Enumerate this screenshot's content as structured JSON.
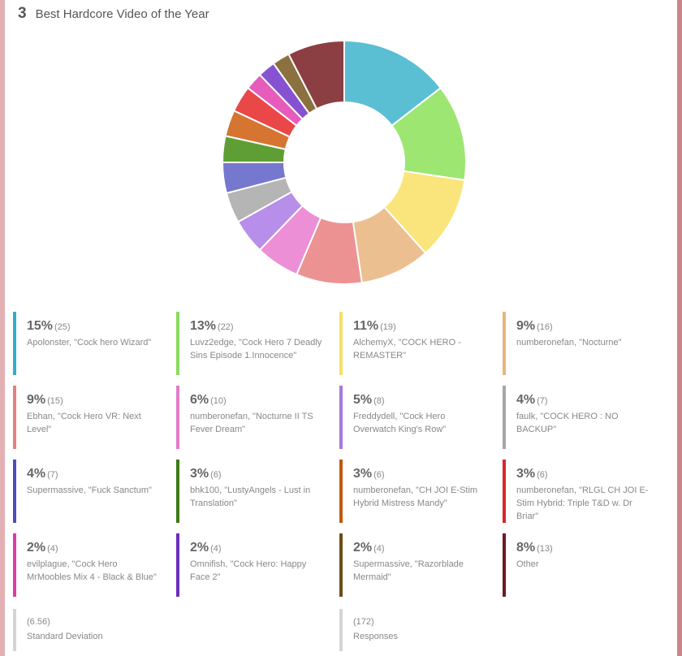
{
  "question": {
    "number": "3",
    "title": "Best Hardcore Video of the Year"
  },
  "chart_data": {
    "type": "pie",
    "subtype": "donut",
    "title": "Best Hardcore Video of the Year",
    "legend_position": "bottom",
    "slices": [
      {
        "pct": "15%",
        "count": "(25)",
        "value": 25,
        "label": "Apolonster, \"Cock hero Wizard\"",
        "color": "#5bbfd4"
      },
      {
        "pct": "13%",
        "count": "(22)",
        "value": 22,
        "label": "Luvz2edge, \"Cock Hero 7 Deadly Sins Episode 1.Innocence\"",
        "color": "#9de672"
      },
      {
        "pct": "11%",
        "count": "(19)",
        "value": 19,
        "label": "AlchemyX, \"COCK HERO - REMASTER\"",
        "color": "#f9e57c"
      },
      {
        "pct": "9%",
        "count": "(16)",
        "value": 16,
        "label": "numberonefan, \"Nocturne\"",
        "color": "#ecbf91"
      },
      {
        "pct": "9%",
        "count": "(15)",
        "value": 15,
        "label": "Ebhan, \"Cock Hero VR: Next Level\"",
        "color": "#ec9293"
      },
      {
        "pct": "6%",
        "count": "(10)",
        "value": 10,
        "label": "numberonefan, \"Nocturne II TS Fever Dream\"",
        "color": "#ec8fd6"
      },
      {
        "pct": "5%",
        "count": "(8)",
        "value": 8,
        "label": "Freddydell, \"Cock Hero Overwatch King's Row\"",
        "color": "#b78ee9"
      },
      {
        "pct": "4%",
        "count": "(7)",
        "value": 7,
        "label": "faulk, \"COCK HERO : NO BACKUP\"",
        "color": "#b5b5b5"
      },
      {
        "pct": "4%",
        "count": "(7)",
        "value": 7,
        "label": "Supermassive, \"Fuck Sanctum\"",
        "color": "#7677cf"
      },
      {
        "pct": "3%",
        "count": "(6)",
        "value": 6,
        "label": "bhk100, \"LustyAngels - Lust in Translation\"",
        "color": "#5f9e34"
      },
      {
        "pct": "3%",
        "count": "(6)",
        "value": 6,
        "label": "numberonefan, \"CH JOI E-Stim Hybrid Mistress Mandy\"",
        "color": "#d67431"
      },
      {
        "pct": "3%",
        "count": "(6)",
        "value": 6,
        "label": "numberonefan, \"RLGL CH JOI E-Stim Hybrid: Triple T&D w. Dr Briar\"",
        "color": "#e94748"
      },
      {
        "pct": "2%",
        "count": "(4)",
        "value": 4,
        "label": "evilplague, \"Cock Hero MrMoobles Mix 4 - Black & Blue\"",
        "color": "#e75bbc"
      },
      {
        "pct": "2%",
        "count": "(4)",
        "value": 4,
        "label": "Omnifish, \"Cock Hero: Happy Face 2\"",
        "color": "#8752d1"
      },
      {
        "pct": "2%",
        "count": "(4)",
        "value": 4,
        "label": "Supermassive, \"Razorblade Mermaid\"",
        "color": "#8b7140"
      },
      {
        "pct": "8%",
        "count": "(13)",
        "value": 13,
        "label": "Other",
        "color": "#8c3f42"
      }
    ],
    "legend_border_colors": [
      "#2bb0c8",
      "#8adb5d",
      "#f5df6a",
      "#e8b57e",
      "#e47f80",
      "#e27cc8",
      "#a479e0",
      "#a6a6a6",
      "#4b4eb8",
      "#3d7a18",
      "#c2570f",
      "#d9262a",
      "#de3aa8",
      "#6a2fb7",
      "#6b4e18",
      "#6d1c20"
    ]
  },
  "stats": [
    {
      "value": "(6.56)",
      "label": "Standard Deviation"
    },
    {
      "value": "(172)",
      "label": "Responses"
    }
  ]
}
